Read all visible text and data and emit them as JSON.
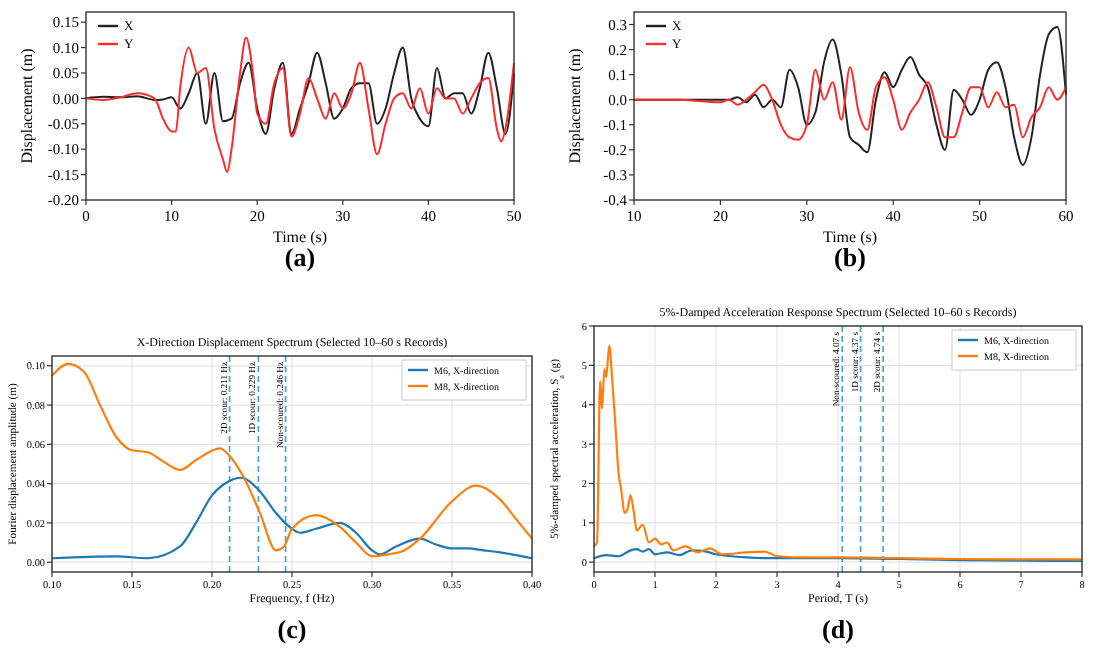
{
  "chart_data": [
    {
      "type": "line",
      "xlabel": "Time (s)",
      "ylabel": "Displacement (m)",
      "annotations": [
        "(a)"
      ],
      "xlim": [
        0,
        50
      ],
      "xticks": [
        0,
        10,
        20,
        30,
        40,
        50
      ],
      "ylim": [
        -0.2,
        0.17
      ],
      "yticks": [
        {
          "value": -0.2,
          "label": "-0.20"
        },
        -0.15,
        {
          "value": -0.1,
          "label": "-0.10"
        },
        -0.05,
        {
          "value": 0,
          "label": "0.00"
        },
        0.05,
        {
          "value": 0.1,
          "label": "0.10"
        },
        0.15
      ],
      "legend": "top left",
      "grid": false,
      "series": [
        {
          "name": "X",
          "color": "#222222",
          "x": [
            0,
            2,
            4,
            6,
            8,
            9,
            10,
            11,
            12,
            13,
            14,
            15,
            16,
            17,
            18,
            19,
            20,
            21,
            22,
            23,
            24,
            25,
            26,
            27,
            28,
            29,
            30,
            31,
            32,
            33,
            34,
            35,
            36,
            37,
            38,
            39,
            40,
            41,
            42,
            43,
            44,
            45,
            46,
            47,
            48,
            49,
            50
          ],
          "values": [
            0,
            0.003,
            0.002,
            0.004,
            -0.003,
            -0.002,
            0.002,
            -0.02,
            0.01,
            0.05,
            -0.05,
            0.05,
            -0.045,
            -0.04,
            0.03,
            0.07,
            -0.02,
            -0.07,
            0.02,
            0.07,
            -0.07,
            -0.02,
            0.03,
            0.09,
            0.03,
            -0.04,
            -0.02,
            0.02,
            0.03,
            0.03,
            -0.05,
            -0.02,
            0.05,
            0.1,
            0,
            -0.04,
            -0.055,
            0.06,
            0,
            0.01,
            0.01,
            -0.03,
            0.02,
            0.09,
            0.02,
            -0.07,
            0.05
          ]
        },
        {
          "name": "Y",
          "color": "#ff2a2a",
          "x": [
            0,
            2,
            4,
            6,
            8,
            9,
            10,
            10.5,
            11,
            12,
            13,
            14,
            15,
            16,
            16.5,
            17,
            18,
            18.7,
            19.5,
            20,
            21,
            22,
            23,
            24,
            25,
            26,
            27,
            28,
            29,
            30,
            31,
            32,
            33,
            34,
            35,
            36,
            37,
            38,
            39,
            40,
            41,
            42,
            43,
            44,
            45,
            46,
            47,
            48,
            48.5,
            49,
            50
          ],
          "values": [
            0,
            -0.003,
            0.002,
            0.01,
            0,
            -0.04,
            -0.065,
            -0.065,
            0.02,
            0.1,
            0.05,
            0.06,
            -0.06,
            -0.12,
            -0.145,
            -0.1,
            0.05,
            0.12,
            0.05,
            -0.03,
            -0.05,
            0.03,
            0.06,
            -0.075,
            -0.03,
            0.04,
            0,
            -0.04,
            0.01,
            -0.02,
            0.01,
            0.07,
            -0.02,
            -0.11,
            -0.05,
            0,
            0.01,
            -0.02,
            0.02,
            -0.03,
            0.02,
            0,
            0,
            -0.03,
            0,
            0.03,
            0.04,
            -0.06,
            -0.085,
            -0.06,
            0.07
          ]
        }
      ]
    },
    {
      "type": "line",
      "xlabel": "Time (s)",
      "ylabel": "Displacement (m)",
      "annotations": [
        "(b)"
      ],
      "xlim": [
        10,
        60
      ],
      "xticks": [
        10,
        20,
        30,
        40,
        50,
        60
      ],
      "ylim": [
        -0.4,
        0.35
      ],
      "yticks": [
        -0.4,
        -0.3,
        -0.2,
        -0.1,
        {
          "value": 0,
          "label": "0.0"
        },
        0.1,
        0.2,
        0.3
      ],
      "legend": "top left",
      "grid": false,
      "series": [
        {
          "name": "X",
          "color": "#222222",
          "x": [
            10,
            15,
            20,
            21,
            22,
            23,
            24,
            25,
            26,
            27,
            28,
            29,
            30,
            31,
            32,
            33,
            34,
            35,
            36,
            37,
            38,
            39,
            40,
            41,
            42,
            43,
            44,
            45,
            46,
            47,
            48,
            49,
            50,
            51,
            52,
            53,
            54,
            55,
            56,
            57,
            58,
            59,
            60
          ],
          "values": [
            0,
            0,
            0,
            0,
            0.01,
            -0.01,
            0.02,
            -0.03,
            0,
            -0.03,
            0.12,
            0.05,
            -0.1,
            -0.05,
            0.15,
            0.24,
            0.1,
            -0.15,
            -0.18,
            -0.21,
            0,
            0.11,
            0.05,
            0.12,
            0.17,
            0.1,
            0.05,
            -0.1,
            -0.2,
            0.04,
            0,
            -0.06,
            0,
            0.12,
            0.15,
            0.05,
            -0.15,
            -0.26,
            -0.15,
            0.1,
            0.26,
            0.29,
            0.02
          ]
        },
        {
          "name": "Y",
          "color": "#ff2a2a",
          "x": [
            10,
            15,
            20,
            21,
            22,
            23,
            24,
            25,
            26,
            27,
            28,
            29,
            30,
            31,
            32,
            33,
            34,
            35,
            36,
            37,
            38,
            39,
            40,
            41,
            42,
            43,
            44,
            45,
            46,
            47,
            48,
            49,
            50,
            51,
            52,
            53,
            54,
            55,
            56,
            57,
            58,
            59,
            60
          ],
          "values": [
            0,
            0,
            -0.01,
            0,
            -0.02,
            0,
            0.03,
            0.06,
            0,
            -0.1,
            -0.15,
            -0.16,
            -0.1,
            0.12,
            0,
            0.07,
            -0.08,
            0.13,
            -0.05,
            -0.12,
            0.05,
            0.09,
            0,
            -0.12,
            -0.05,
            0,
            0.07,
            -0.03,
            -0.15,
            -0.15,
            -0.05,
            0.05,
            0.05,
            -0.03,
            0.03,
            -0.03,
            -0.02,
            -0.15,
            -0.07,
            -0.03,
            0.05,
            0,
            0.05
          ]
        }
      ]
    },
    {
      "type": "line",
      "title": "X-Direction Displacement Spectrum (Selected 10–60 s Records)",
      "xlabel": "Frequency, f (Hz)",
      "ylabel": "Fourier displacement amplitude (m)",
      "annotations": [
        "(c)"
      ],
      "xlim": [
        0.1,
        0.4
      ],
      "xticks": [
        {
          "value": 0.1,
          "label": "0.10"
        },
        0.15,
        {
          "value": 0.2,
          "label": "0.20"
        },
        0.25,
        {
          "value": 0.3,
          "label": "0.30"
        },
        0.35,
        {
          "value": 0.4,
          "label": "0.40"
        }
      ],
      "ylim": [
        -0.005,
        0.105
      ],
      "yticks": [
        {
          "value": 0,
          "label": "0.00"
        },
        0.02,
        0.04,
        0.06,
        0.08,
        {
          "value": 0.1,
          "label": "0.10"
        }
      ],
      "legend": "top right",
      "grid": true,
      "ref_lines": [
        {
          "axis": "x",
          "value": 0.211,
          "label": "2D scour: 0.211 Hz",
          "color": "#4aa8d8",
          "line_style": "dashed"
        },
        {
          "axis": "x",
          "value": 0.229,
          "label": "1D scour: 0.229 Hz",
          "color": "#4aa8d8",
          "line_style": "dashed"
        },
        {
          "axis": "x",
          "value": 0.246,
          "label": "Non-scoured: 0.246 Hz",
          "color": "#4aa8d8",
          "line_style": "dashed"
        }
      ],
      "series": [
        {
          "name": "M6, X-direction",
          "color": "#1f77b4",
          "x": [
            0.1,
            0.14,
            0.16,
            0.18,
            0.19,
            0.2,
            0.21,
            0.218,
            0.23,
            0.24,
            0.25,
            0.255,
            0.265,
            0.28,
            0.29,
            0.3,
            0.305,
            0.315,
            0.33,
            0.34,
            0.35,
            0.36,
            0.37,
            0.38,
            0.4
          ],
          "values": [
            0.002,
            0.003,
            0.002,
            0.008,
            0.02,
            0.034,
            0.041,
            0.043,
            0.036,
            0.025,
            0.017,
            0.015,
            0.017,
            0.02,
            0.015,
            0.006,
            0.004,
            0.008,
            0.012,
            0.009,
            0.007,
            0.007,
            0.006,
            0.005,
            0.002
          ]
        },
        {
          "name": "M8, X-direction",
          "color": "#ff7f0e",
          "x": [
            0.1,
            0.11,
            0.12,
            0.13,
            0.14,
            0.15,
            0.16,
            0.17,
            0.18,
            0.19,
            0.205,
            0.21,
            0.22,
            0.23,
            0.24,
            0.245,
            0.25,
            0.265,
            0.28,
            0.29,
            0.3,
            0.31,
            0.32,
            0.33,
            0.35,
            0.365,
            0.38,
            0.39,
            0.4
          ],
          "values": [
            0.095,
            0.101,
            0.097,
            0.08,
            0.064,
            0.057,
            0.056,
            0.051,
            0.047,
            0.052,
            0.058,
            0.055,
            0.043,
            0.025,
            0.006,
            0.008,
            0.017,
            0.024,
            0.018,
            0.01,
            0.003,
            0.004,
            0.006,
            0.012,
            0.031,
            0.039,
            0.032,
            0.022,
            0.012
          ]
        }
      ]
    },
    {
      "type": "line",
      "title": "5%-Damped Acceleration Response Spectrum (Selected 10–60 s Records)",
      "xlabel": "Period, T (s)",
      "ylabel": "5%-damped spectral acceleration, S$_{a}$ (g)",
      "annotations": [
        "(d)"
      ],
      "xlim": [
        0,
        8
      ],
      "xticks": [
        0,
        1,
        2,
        3,
        4,
        5,
        6,
        7,
        8
      ],
      "ylim": [
        -0.25,
        6
      ],
      "yticks": [
        0,
        1,
        2,
        3,
        4,
        5,
        6
      ],
      "legend": "top right",
      "grid": true,
      "ref_lines": [
        {
          "axis": "x",
          "value": 4.07,
          "label": "Non-scoured: 4.07 s",
          "color": "#4aa8d8",
          "line_style": "dashed"
        },
        {
          "axis": "x",
          "value": 4.37,
          "label": "1D scour: 4.37 s",
          "color": "#4aa8d8",
          "line_style": "dashed"
        },
        {
          "axis": "x",
          "value": 4.74,
          "label": "2D scour: 4.74 s",
          "color": "#4aa8d8",
          "line_style": "dashed"
        }
      ],
      "series": [
        {
          "name": "M6, X-direction",
          "color": "#1f77b4",
          "x": [
            0,
            0.2,
            0.4,
            0.6,
            0.7,
            0.8,
            0.9,
            1,
            1.2,
            1.4,
            1.6,
            1.8,
            2,
            2.5,
            3,
            4,
            5,
            6,
            7,
            8
          ],
          "values": [
            0.1,
            0.18,
            0.15,
            0.3,
            0.33,
            0.27,
            0.33,
            0.2,
            0.25,
            0.18,
            0.3,
            0.28,
            0.2,
            0.12,
            0.1,
            0.1,
            0.08,
            0.05,
            0.04,
            0.03
          ]
        },
        {
          "name": "M8, X-direction",
          "color": "#ff7f0e",
          "x": [
            0,
            0.05,
            0.1,
            0.13,
            0.17,
            0.2,
            0.25,
            0.3,
            0.35,
            0.4,
            0.45,
            0.5,
            0.55,
            0.6,
            0.65,
            0.7,
            0.8,
            0.9,
            1,
            1.1,
            1.2,
            1.3,
            1.5,
            1.7,
            1.9,
            2.1,
            2.5,
            2.8,
            3,
            3.5,
            4,
            5,
            6,
            7,
            8
          ],
          "values": [
            0.4,
            0.5,
            4.6,
            3.9,
            4.9,
            4.7,
            5.5,
            4.6,
            3.5,
            2.3,
            1.8,
            1.25,
            1.35,
            1.7,
            1.3,
            0.8,
            0.95,
            0.5,
            0.6,
            0.45,
            0.5,
            0.3,
            0.4,
            0.25,
            0.35,
            0.2,
            0.25,
            0.27,
            0.15,
            0.12,
            0.12,
            0.1,
            0.08,
            0.07,
            0.07
          ]
        }
      ]
    }
  ]
}
